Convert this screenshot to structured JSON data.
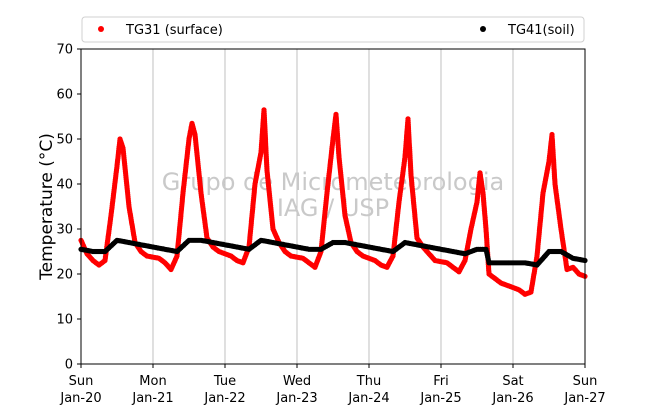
{
  "chart_data": {
    "type": "scatter",
    "title": "",
    "xlabel": "",
    "ylabel": "Temperature (°C)",
    "ylim": [
      0,
      70
    ],
    "yticks": [
      0,
      10,
      20,
      30,
      40,
      50,
      60,
      70
    ],
    "xlim": [
      "2019-01-20 00:00",
      "2019-01-27 00:00"
    ],
    "xticks": [
      {
        "day": "Sun",
        "date": "Jan-20"
      },
      {
        "day": "Mon",
        "date": "Jan-21"
      },
      {
        "day": "Tue",
        "date": "Jan-22"
      },
      {
        "day": "Wed",
        "date": "Jan-23"
      },
      {
        "day": "Thu",
        "date": "Jan-24"
      },
      {
        "day": "Fri",
        "date": "Jan-25"
      },
      {
        "day": "Sat",
        "date": "Jan-26"
      },
      {
        "day": "Sun",
        "date": "Jan-27"
      }
    ],
    "grid": "vertical",
    "legend_position": "top",
    "watermark": [
      "Grupo de Micrometeorologia",
      "IAG / USP"
    ],
    "series": [
      {
        "name": "TG31 (surface)",
        "color": "#ff0000",
        "marker": "dot",
        "points": [
          [
            "2019-01-20 00:00",
            27.5
          ],
          [
            "2019-01-20 02:00",
            24.5
          ],
          [
            "2019-01-20 04:00",
            23.0
          ],
          [
            "2019-01-20 06:00",
            22.0
          ],
          [
            "2019-01-20 08:00",
            23.0
          ],
          [
            "2019-01-20 10:00",
            33.0
          ],
          [
            "2019-01-20 12:00",
            44.0
          ],
          [
            "2019-01-20 13:00",
            50.0
          ],
          [
            "2019-01-20 14:00",
            48.0
          ],
          [
            "2019-01-20 16:00",
            35.0
          ],
          [
            "2019-01-20 18:00",
            27.0
          ],
          [
            "2019-01-20 20:00",
            25.0
          ],
          [
            "2019-01-20 22:00",
            24.0
          ],
          [
            "2019-01-21 02:00",
            23.5
          ],
          [
            "2019-01-21 04:00",
            22.5
          ],
          [
            "2019-01-21 06:00",
            21.0
          ],
          [
            "2019-01-21 08:00",
            24.0
          ],
          [
            "2019-01-21 10:00",
            38.0
          ],
          [
            "2019-01-21 12:00",
            50.0
          ],
          [
            "2019-01-21 13:00",
            53.5
          ],
          [
            "2019-01-21 14:00",
            51.0
          ],
          [
            "2019-01-21 16:00",
            38.0
          ],
          [
            "2019-01-21 18:00",
            28.0
          ],
          [
            "2019-01-21 20:00",
            26.0
          ],
          [
            "2019-01-21 22:00",
            25.0
          ],
          [
            "2019-01-22 02:00",
            24.0
          ],
          [
            "2019-01-22 04:00",
            23.0
          ],
          [
            "2019-01-22 06:00",
            22.5
          ],
          [
            "2019-01-22 08:00",
            26.0
          ],
          [
            "2019-01-22 10:00",
            40.0
          ],
          [
            "2019-01-22 12:00",
            47.0
          ],
          [
            "2019-01-22 13:00",
            56.5
          ],
          [
            "2019-01-22 14:00",
            43.0
          ],
          [
            "2019-01-22 16:00",
            30.0
          ],
          [
            "2019-01-22 18:00",
            27.0
          ],
          [
            "2019-01-22 20:00",
            25.0
          ],
          [
            "2019-01-22 22:00",
            24.0
          ],
          [
            "2019-01-23 02:00",
            23.5
          ],
          [
            "2019-01-23 04:00",
            22.5
          ],
          [
            "2019-01-23 06:00",
            21.5
          ],
          [
            "2019-01-23 08:00",
            25.0
          ],
          [
            "2019-01-23 10:00",
            38.0
          ],
          [
            "2019-01-23 12:00",
            50.0
          ],
          [
            "2019-01-23 13:00",
            55.5
          ],
          [
            "2019-01-23 14:00",
            46.0
          ],
          [
            "2019-01-23 16:00",
            33.0
          ],
          [
            "2019-01-23 18:00",
            27.0
          ],
          [
            "2019-01-23 20:00",
            25.0
          ],
          [
            "2019-01-23 22:00",
            24.0
          ],
          [
            "2019-01-24 02:00",
            23.0
          ],
          [
            "2019-01-24 04:00",
            22.0
          ],
          [
            "2019-01-24 06:00",
            21.5
          ],
          [
            "2019-01-24 08:00",
            24.0
          ],
          [
            "2019-01-24 10:00",
            36.0
          ],
          [
            "2019-01-24 12:00",
            46.0
          ],
          [
            "2019-01-24 13:00",
            54.5
          ],
          [
            "2019-01-24 14:00",
            42.0
          ],
          [
            "2019-01-24 16:00",
            28.0
          ],
          [
            "2019-01-24 18:00",
            26.0
          ],
          [
            "2019-01-24 20:00",
            24.5
          ],
          [
            "2019-01-24 22:00",
            23.0
          ],
          [
            "2019-01-25 02:00",
            22.5
          ],
          [
            "2019-01-25 04:00",
            21.5
          ],
          [
            "2019-01-25 06:00",
            20.5
          ],
          [
            "2019-01-25 08:00",
            23.0
          ],
          [
            "2019-01-25 10:00",
            30.0
          ],
          [
            "2019-01-25 12:00",
            36.0
          ],
          [
            "2019-01-25 13:00",
            42.5
          ],
          [
            "2019-01-25 14:00",
            38.0
          ],
          [
            "2019-01-25 15:00",
            30.0
          ],
          [
            "2019-01-25 16:00",
            20.0
          ],
          [
            "2019-01-25 18:00",
            19.0
          ],
          [
            "2019-01-25 20:00",
            18.0
          ],
          [
            "2019-01-25 22:00",
            17.5
          ],
          [
            "2019-01-26 02:00",
            16.5
          ],
          [
            "2019-01-26 04:00",
            15.5
          ],
          [
            "2019-01-26 06:00",
            16.0
          ],
          [
            "2019-01-26 08:00",
            24.0
          ],
          [
            "2019-01-26 10:00",
            38.0
          ],
          [
            "2019-01-26 12:00",
            45.0
          ],
          [
            "2019-01-26 13:00",
            51.0
          ],
          [
            "2019-01-26 14:00",
            40.0
          ],
          [
            "2019-01-26 16:00",
            30.0
          ],
          [
            "2019-01-26 18:00",
            21.0
          ],
          [
            "2019-01-26 20:00",
            21.5
          ],
          [
            "2019-01-26 22:00",
            20.0
          ],
          [
            "2019-01-27 00:00",
            19.5
          ]
        ]
      },
      {
        "name": "TG41(soil)",
        "color": "#000000",
        "marker": "dot",
        "points": [
          [
            "2019-01-20 00:00",
            25.5
          ],
          [
            "2019-01-20 04:00",
            25.0
          ],
          [
            "2019-01-20 08:00",
            25.0
          ],
          [
            "2019-01-20 12:00",
            27.5
          ],
          [
            "2019-01-20 16:00",
            27.0
          ],
          [
            "2019-01-20 20:00",
            26.5
          ],
          [
            "2019-01-21 00:00",
            26.0
          ],
          [
            "2019-01-21 04:00",
            25.5
          ],
          [
            "2019-01-21 08:00",
            25.0
          ],
          [
            "2019-01-21 12:00",
            27.5
          ],
          [
            "2019-01-21 16:00",
            27.5
          ],
          [
            "2019-01-21 20:00",
            27.0
          ],
          [
            "2019-01-22 00:00",
            26.5
          ],
          [
            "2019-01-22 04:00",
            26.0
          ],
          [
            "2019-01-22 08:00",
            25.5
          ],
          [
            "2019-01-22 12:00",
            27.5
          ],
          [
            "2019-01-22 16:00",
            27.0
          ],
          [
            "2019-01-22 20:00",
            26.5
          ],
          [
            "2019-01-23 00:00",
            26.0
          ],
          [
            "2019-01-23 04:00",
            25.5
          ],
          [
            "2019-01-23 08:00",
            25.5
          ],
          [
            "2019-01-23 12:00",
            27.0
          ],
          [
            "2019-01-23 16:00",
            27.0
          ],
          [
            "2019-01-23 20:00",
            26.5
          ],
          [
            "2019-01-24 00:00",
            26.0
          ],
          [
            "2019-01-24 04:00",
            25.5
          ],
          [
            "2019-01-24 08:00",
            25.0
          ],
          [
            "2019-01-24 12:00",
            27.0
          ],
          [
            "2019-01-24 16:00",
            26.5
          ],
          [
            "2019-01-24 20:00",
            26.0
          ],
          [
            "2019-01-25 00:00",
            25.5
          ],
          [
            "2019-01-25 04:00",
            25.0
          ],
          [
            "2019-01-25 08:00",
            24.5
          ],
          [
            "2019-01-25 12:00",
            25.5
          ],
          [
            "2019-01-25 15:00",
            25.5
          ],
          [
            "2019-01-25 16:00",
            22.5
          ],
          [
            "2019-01-25 20:00",
            22.5
          ],
          [
            "2019-01-26 00:00",
            22.5
          ],
          [
            "2019-01-26 04:00",
            22.5
          ],
          [
            "2019-01-26 08:00",
            22.0
          ],
          [
            "2019-01-26 12:00",
            25.0
          ],
          [
            "2019-01-26 16:00",
            25.0
          ],
          [
            "2019-01-26 20:00",
            23.5
          ],
          [
            "2019-01-27 00:00",
            23.0
          ]
        ]
      }
    ]
  }
}
